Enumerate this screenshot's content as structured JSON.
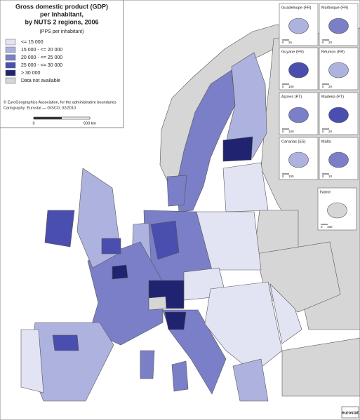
{
  "title": [
    "Gross domestic product (GDP)",
    "per inhabitant,",
    "by NUTS 2 regions, 2006"
  ],
  "subtitle": "(PPS per inhabitant)",
  "legend": [
    {
      "label": "<= 15 000",
      "color": "#e2e4f4"
    },
    {
      "label": "15 000 - <= 20 000",
      "color": "#aeb2de"
    },
    {
      "label": "20 000 - <= 25 000",
      "color": "#7a7fc8"
    },
    {
      "label": "25 000 - <= 30 000",
      "color": "#4a4eae"
    },
    {
      "label": "> 30 000",
      "color": "#1f2370"
    },
    {
      "label": "Data not available",
      "color": "#d6d6d6"
    }
  ],
  "credits": [
    "© EuroGeographics Association, for the administrative boundaries",
    "Cartography: Eurostat — GISCO, 02/2010"
  ],
  "scale_bar": [
    "0",
    "600 km"
  ],
  "insets": [
    {
      "label": "Guadeloupe (FR)",
      "scale": [
        "0",
        "25"
      ]
    },
    {
      "label": "Martinique (FR)",
      "scale": [
        "0",
        "20"
      ]
    },
    {
      "label": "Guyane (FR)",
      "scale": [
        "0",
        "100"
      ]
    },
    {
      "label": "Réunion (FR)",
      "scale": [
        "0",
        "20"
      ]
    },
    {
      "label": "Açores (PT)",
      "scale": [
        "0",
        "100"
      ]
    },
    {
      "label": "Madeira (PT)",
      "scale": [
        "0",
        "20"
      ]
    },
    {
      "label": "Canarias (ES)",
      "scale": [
        "0",
        "100"
      ]
    },
    {
      "label": "Malta",
      "scale": [
        "0",
        "10"
      ]
    },
    {
      "label": "Ísland",
      "scale": [
        "0",
        "100"
      ]
    }
  ],
  "logo": "eurostat"
}
